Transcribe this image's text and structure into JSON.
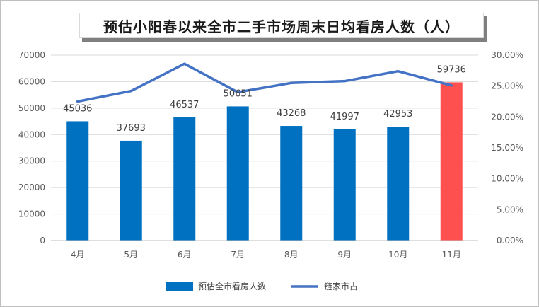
{
  "chart_data": {
    "type": "bar",
    "title": "预估小阳春以来全市二手市场周末日均看房人数（人）",
    "categories": [
      "4月",
      "5月",
      "6月",
      "7月",
      "8月",
      "9月",
      "10月",
      "11月"
    ],
    "series": [
      {
        "name": "预估全市看房人数",
        "type": "bar",
        "axis": "left",
        "values": [
          45036,
          37693,
          46537,
          50651,
          43268,
          41997,
          42953,
          59736
        ],
        "data_labels": [
          "45036",
          "37693",
          "46537",
          "50651",
          "43268",
          "41997",
          "42953",
          "59736"
        ],
        "color": "#0070C0",
        "highlight_color": "#FF5050",
        "highlight_index": 7
      },
      {
        "name": "链家市占",
        "type": "line",
        "axis": "right",
        "values": [
          0.225,
          0.242,
          0.286,
          0.24,
          0.255,
          0.258,
          0.274,
          0.251
        ],
        "color": "#4472C4"
      }
    ],
    "y_left": {
      "min": 0,
      "max": 70000,
      "ticks": [
        "0",
        "10000",
        "20000",
        "30000",
        "40000",
        "50000",
        "60000",
        "70000"
      ]
    },
    "y_right": {
      "min": 0,
      "max": 0.3,
      "ticks": [
        "0.00%",
        "5.00%",
        "10.00%",
        "15.00%",
        "20.00%",
        "25.00%",
        "30.00%"
      ]
    },
    "grid": true,
    "legend": "bottom"
  }
}
